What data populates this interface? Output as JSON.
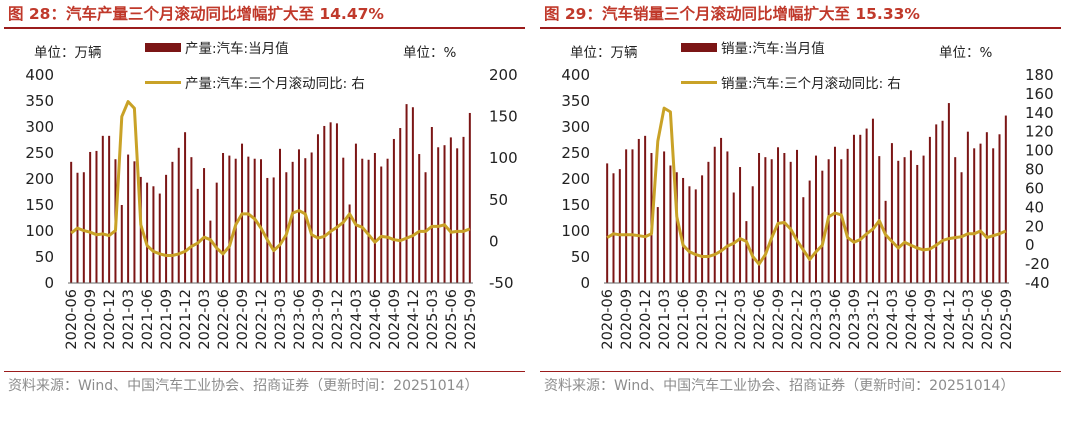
{
  "panels": [
    {
      "title": "图 28：汽车产量三个月滚动同比增幅扩大至 14.47%",
      "unit_left": "单位：万辆",
      "unit_right": "单位：%",
      "source": "资料来源：Wind、中国汽车工业协会、招商证券（更新时间：20251014）",
      "colors": {
        "bar": "#7b1515",
        "line": "#c9a227",
        "title": "#c0392b"
      },
      "chart_data": {
        "type": "bar",
        "categories": [
          "2020-06",
          "2020-07",
          "2020-08",
          "2020-09",
          "2020-10",
          "2020-11",
          "2020-12",
          "2021-01",
          "2021-02",
          "2021-03",
          "2021-04",
          "2021-05",
          "2021-06",
          "2021-07",
          "2021-08",
          "2021-09",
          "2021-10",
          "2021-11",
          "2021-12",
          "2022-01",
          "2022-02",
          "2022-03",
          "2022-04",
          "2022-05",
          "2022-06",
          "2022-07",
          "2022-08",
          "2022-09",
          "2022-10",
          "2022-11",
          "2022-12",
          "2023-01",
          "2023-02",
          "2023-03",
          "2023-04",
          "2023-05",
          "2023-06",
          "2023-07",
          "2023-08",
          "2023-09",
          "2023-10",
          "2023-11",
          "2023-12",
          "2024-01",
          "2024-02",
          "2024-03",
          "2024-04",
          "2024-05",
          "2024-06",
          "2024-07",
          "2024-08",
          "2024-09",
          "2024-10",
          "2024-11",
          "2024-12",
          "2025-01",
          "2025-02",
          "2025-03",
          "2025-04",
          "2025-05",
          "2025-06",
          "2025-07",
          "2025-08",
          "2025-09"
        ],
        "tick_labels": [
          "2020-06",
          "2020-09",
          "2020-12",
          "2021-03",
          "2021-06",
          "2021-09",
          "2021-12",
          "2022-03",
          "2022-06",
          "2022-09",
          "2022-12",
          "2023-03",
          "2023-06",
          "2023-09",
          "2023-12",
          "2024-03",
          "2024-06",
          "2024-09",
          "2024-12",
          "2025-03",
          "2025-06",
          "2025-09"
        ],
        "series": [
          {
            "name": "产量:汽车:当月值",
            "type": "bar",
            "axis": "left",
            "values": [
              233,
              212,
              213,
              252,
              254,
              283,
              283,
              238,
              150,
              247,
              234,
              204,
              193,
              186,
              172,
              208,
              233,
              260,
              290,
              242,
              181,
              221,
              120,
              193,
              250,
              245,
              239,
              268,
              243,
              239,
              238,
              202,
              203,
              258,
              213,
              233,
              257,
              240,
              251,
              286,
              302,
              309,
              307,
              241,
              151,
              268,
              239,
              237,
              250,
              224,
              239,
              277,
              298,
              344,
              338,
              248,
              213,
              300,
              261,
              265,
              280,
              259,
              281,
              327
            ]
          },
          {
            "name": "产量:汽车:三个月滚动同比: 右",
            "type": "line",
            "axis": "right",
            "values": [
              10,
              16,
              13,
              11,
              8,
              9,
              7,
              13,
              150,
              168,
              160,
              20,
              -5,
              -12,
              -15,
              -17,
              -17,
              -15,
              -12,
              -6,
              -2,
              5,
              2,
              -8,
              -15,
              -6,
              20,
              33,
              33,
              27,
              16,
              2,
              -11,
              -4,
              8,
              34,
              37,
              33,
              8,
              4,
              6,
              12,
              17,
              23,
              33,
              20,
              17,
              8,
              -1,
              6,
              5,
              2,
              1,
              4,
              7,
              12,
              12,
              18,
              18,
              20,
              11,
              12,
              12,
              15
            ]
          }
        ],
        "y_left": {
          "min": 0,
          "max": 400,
          "ticks": [
            0,
            50,
            100,
            150,
            200,
            250,
            300,
            350,
            400
          ]
        },
        "y_right": {
          "min": -50,
          "max": 200,
          "ticks": [
            -50,
            0,
            50,
            100,
            150,
            200
          ]
        },
        "legend": [
          "产量:汽车:当月值",
          "产量:汽车:三个月滚动同比: 右"
        ]
      }
    },
    {
      "title": "图 29：汽车销量三个月滚动同比增幅扩大至 15.33%",
      "unit_left": "单位：万辆",
      "unit_right": "单位：%",
      "source": "资料来源：Wind、中国汽车工业协会、招商证券（更新时间：20251014）",
      "colors": {
        "bar": "#7b1515",
        "line": "#c9a227",
        "title": "#c0392b"
      },
      "chart_data": {
        "type": "bar",
        "categories": [
          "2020-06",
          "2020-07",
          "2020-08",
          "2020-09",
          "2020-10",
          "2020-11",
          "2020-12",
          "2021-01",
          "2021-02",
          "2021-03",
          "2021-04",
          "2021-05",
          "2021-06",
          "2021-07",
          "2021-08",
          "2021-09",
          "2021-10",
          "2021-11",
          "2021-12",
          "2022-01",
          "2022-02",
          "2022-03",
          "2022-04",
          "2022-05",
          "2022-06",
          "2022-07",
          "2022-08",
          "2022-09",
          "2022-10",
          "2022-11",
          "2022-12",
          "2023-01",
          "2023-02",
          "2023-03",
          "2023-04",
          "2023-05",
          "2023-06",
          "2023-07",
          "2023-08",
          "2023-09",
          "2023-10",
          "2023-11",
          "2023-12",
          "2024-01",
          "2024-02",
          "2024-03",
          "2024-04",
          "2024-05",
          "2024-06",
          "2024-07",
          "2024-08",
          "2024-09",
          "2024-10",
          "2024-11",
          "2024-12",
          "2025-01",
          "2025-02",
          "2025-03",
          "2025-04",
          "2025-05",
          "2025-06",
          "2025-07",
          "2025-08",
          "2025-09"
        ],
        "tick_labels": [
          "2020-06",
          "2020-09",
          "2020-12",
          "2021-03",
          "2021-06",
          "2021-09",
          "2021-12",
          "2022-03",
          "2022-06",
          "2022-09",
          "2022-12",
          "2023-03",
          "2023-06",
          "2023-09",
          "2023-12",
          "2024-03",
          "2024-06",
          "2024-09",
          "2024-12",
          "2025-03",
          "2025-06",
          "2025-09"
        ],
        "series": [
          {
            "name": "销量:汽车:当月值",
            "type": "bar",
            "axis": "left",
            "values": [
              230,
              211,
              219,
              257,
              257,
              277,
              283,
              250,
              146,
              253,
              226,
              213,
              202,
              186,
              180,
              207,
              233,
              262,
              279,
              253,
              174,
              223,
              119,
              186,
              250,
              242,
              238,
              261,
              250,
              233,
              256,
              165,
              197,
              245,
              216,
              238,
              262,
              238,
              258,
              285,
              285,
              297,
              316,
              244,
              158,
              269,
              235,
              242,
              255,
              227,
              245,
              281,
              305,
              312,
              346,
              242,
              213,
              291,
              259,
              268,
              290,
              259,
              286,
              322
            ]
          },
          {
            "name": "销量:汽车:三个月滚动同比: 右",
            "type": "line",
            "axis": "right",
            "values": [
              8,
              12,
              11,
              11,
              11,
              10,
              9,
              12,
              110,
              145,
              141,
              30,
              0,
              -7,
              -10,
              -12,
              -12,
              -10,
              -6,
              -1,
              2,
              7,
              4,
              -12,
              -20,
              -10,
              8,
              23,
              24,
              17,
              5,
              -5,
              -15,
              -7,
              0,
              30,
              34,
              32,
              8,
              3,
              6,
              12,
              17,
              26,
              11,
              4,
              -3,
              3,
              0,
              -3,
              -5,
              -4,
              0,
              5,
              7,
              8,
              9,
              12,
              12,
              15,
              8,
              10,
              12,
              15
            ]
          }
        ],
        "y_left": {
          "min": 0,
          "max": 400,
          "ticks": [
            0,
            50,
            100,
            150,
            200,
            250,
            300,
            350,
            400
          ]
        },
        "y_right": {
          "min": -40,
          "max": 180,
          "ticks": [
            -40,
            -20,
            0,
            20,
            40,
            60,
            80,
            100,
            120,
            140,
            160,
            180
          ]
        },
        "legend": [
          "销量:汽车:当月值",
          "销量:汽车:三个月滚动同比: 右"
        ]
      }
    }
  ]
}
